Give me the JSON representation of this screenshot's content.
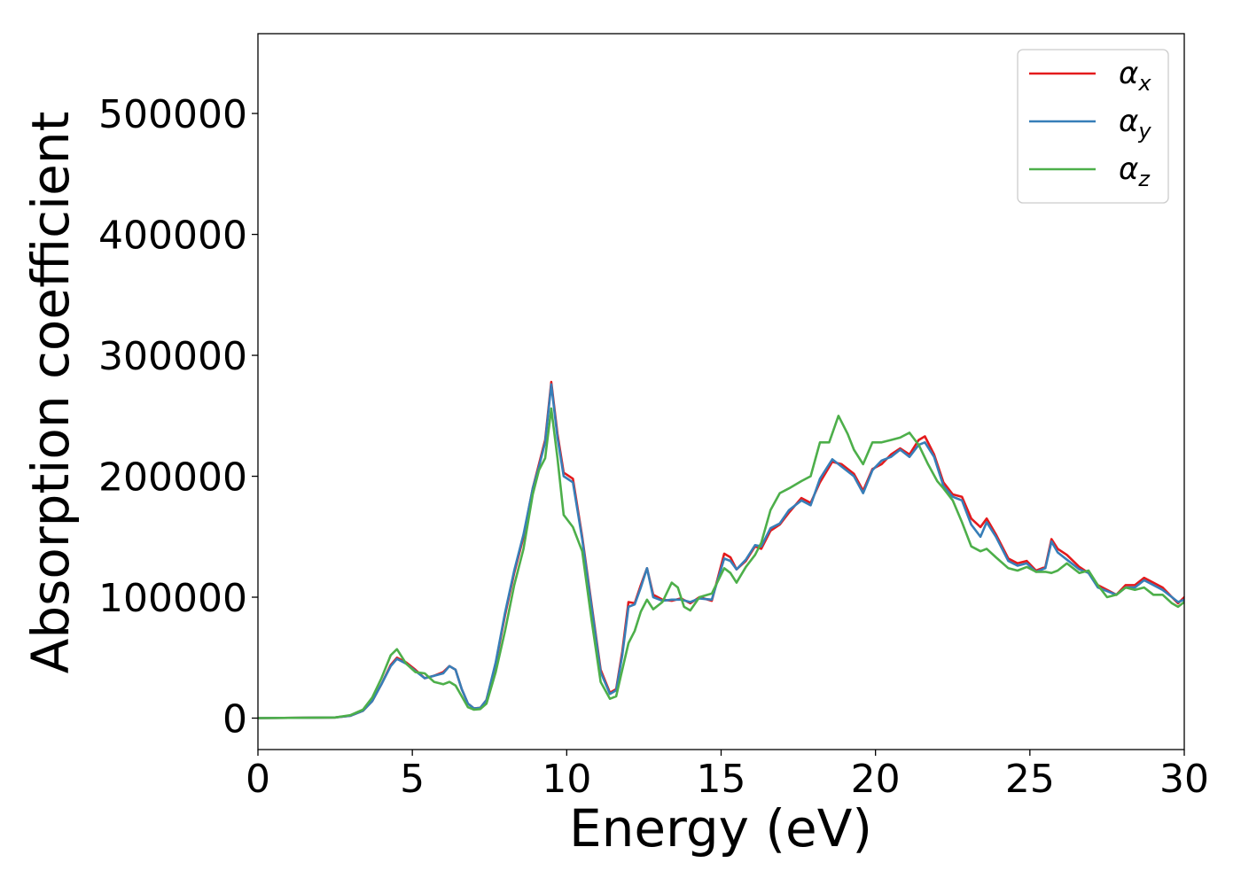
{
  "chart_data": {
    "type": "line",
    "title": "",
    "xlabel": "Energy (eV)",
    "ylabel": "Absorption coefficient",
    "xlim": [
      0,
      30
    ],
    "ylim": [
      -26000,
      566000
    ],
    "xticks": [
      0,
      5,
      10,
      15,
      20,
      25,
      30
    ],
    "xtick_labels": [
      "0",
      "5",
      "10",
      "15",
      "20",
      "25",
      "30"
    ],
    "yticks": [
      0,
      100000,
      200000,
      300000,
      400000,
      500000
    ],
    "ytick_labels": [
      "0",
      "100000",
      "200000",
      "300000",
      "400000",
      "500000"
    ],
    "grid": false,
    "legend_position": "top-right",
    "series": [
      {
        "name": "αx",
        "sym": "α",
        "sub": "x",
        "color": "#e41a1c",
        "points": [
          [
            0,
            0
          ],
          [
            2.5,
            500
          ],
          [
            3,
            2000
          ],
          [
            3.4,
            6000
          ],
          [
            3.7,
            14000
          ],
          [
            4,
            28000
          ],
          [
            4.3,
            44000
          ],
          [
            4.5,
            50000
          ],
          [
            4.8,
            46000
          ],
          [
            5.1,
            40000
          ],
          [
            5.4,
            33000
          ],
          [
            5.7,
            35000
          ],
          [
            6,
            38000
          ],
          [
            6.2,
            43000
          ],
          [
            6.4,
            40000
          ],
          [
            6.6,
            24000
          ],
          [
            6.8,
            12000
          ],
          [
            7,
            8000
          ],
          [
            7.2,
            8500
          ],
          [
            7.4,
            15000
          ],
          [
            7.7,
            45000
          ],
          [
            8,
            85000
          ],
          [
            8.3,
            120000
          ],
          [
            8.6,
            150000
          ],
          [
            8.9,
            190000
          ],
          [
            9.1,
            210000
          ],
          [
            9.3,
            230000
          ],
          [
            9.5,
            278000
          ],
          [
            9.7,
            235000
          ],
          [
            9.9,
            203000
          ],
          [
            10.2,
            198000
          ],
          [
            10.5,
            150000
          ],
          [
            10.8,
            95000
          ],
          [
            11.1,
            40000
          ],
          [
            11.4,
            21000
          ],
          [
            11.6,
            24000
          ],
          [
            11.8,
            55000
          ],
          [
            12,
            96000
          ],
          [
            12.2,
            95000
          ],
          [
            12.4,
            110000
          ],
          [
            12.6,
            124000
          ],
          [
            12.8,
            102000
          ],
          [
            13.1,
            98000
          ],
          [
            13.4,
            97000
          ],
          [
            13.7,
            99000
          ],
          [
            14,
            95000
          ],
          [
            14.3,
            100000
          ],
          [
            14.7,
            97000
          ],
          [
            15.1,
            136000
          ],
          [
            15.3,
            133000
          ],
          [
            15.5,
            123000
          ],
          [
            15.8,
            130000
          ],
          [
            16.1,
            142000
          ],
          [
            16.3,
            140000
          ],
          [
            16.6,
            155000
          ],
          [
            16.9,
            160000
          ],
          [
            17.2,
            170000
          ],
          [
            17.6,
            182000
          ],
          [
            17.9,
            178000
          ],
          [
            18.2,
            195000
          ],
          [
            18.6,
            212000
          ],
          [
            18.9,
            210000
          ],
          [
            19.3,
            202000
          ],
          [
            19.6,
            188000
          ],
          [
            19.9,
            206000
          ],
          [
            20.2,
            210000
          ],
          [
            20.5,
            218000
          ],
          [
            20.8,
            223000
          ],
          [
            21.1,
            218000
          ],
          [
            21.4,
            230000
          ],
          [
            21.6,
            233000
          ],
          [
            21.9,
            218000
          ],
          [
            22.2,
            195000
          ],
          [
            22.5,
            185000
          ],
          [
            22.8,
            183000
          ],
          [
            23.1,
            165000
          ],
          [
            23.4,
            158000
          ],
          [
            23.6,
            165000
          ],
          [
            23.9,
            152000
          ],
          [
            24.3,
            132000
          ],
          [
            24.6,
            128000
          ],
          [
            24.9,
            130000
          ],
          [
            25.2,
            122000
          ],
          [
            25.5,
            125000
          ],
          [
            25.7,
            148000
          ],
          [
            25.9,
            140000
          ],
          [
            26.2,
            135000
          ],
          [
            26.6,
            125000
          ],
          [
            26.9,
            120000
          ],
          [
            27.2,
            110000
          ],
          [
            27.5,
            106000
          ],
          [
            27.8,
            102000
          ],
          [
            28.1,
            110000
          ],
          [
            28.4,
            110000
          ],
          [
            28.7,
            116000
          ],
          [
            29,
            112000
          ],
          [
            29.3,
            108000
          ],
          [
            29.6,
            100000
          ],
          [
            29.8,
            95000
          ],
          [
            30,
            100000
          ]
        ]
      },
      {
        "name": "αy",
        "sym": "α",
        "sub": "y",
        "color": "#377eb8",
        "points": [
          [
            0,
            0
          ],
          [
            2.5,
            500
          ],
          [
            3,
            2000
          ],
          [
            3.4,
            6000
          ],
          [
            3.7,
            14000
          ],
          [
            4,
            28000
          ],
          [
            4.3,
            43000
          ],
          [
            4.5,
            49000
          ],
          [
            4.8,
            45000
          ],
          [
            5.1,
            39000
          ],
          [
            5.4,
            33000
          ],
          [
            5.7,
            35000
          ],
          [
            6,
            37000
          ],
          [
            6.2,
            43000
          ],
          [
            6.4,
            40000
          ],
          [
            6.6,
            24000
          ],
          [
            6.8,
            12000
          ],
          [
            7,
            8000
          ],
          [
            7.2,
            8500
          ],
          [
            7.4,
            15000
          ],
          [
            7.7,
            46000
          ],
          [
            8,
            87000
          ],
          [
            8.3,
            122000
          ],
          [
            8.6,
            152000
          ],
          [
            8.9,
            190000
          ],
          [
            9.1,
            208000
          ],
          [
            9.3,
            228000
          ],
          [
            9.5,
            276000
          ],
          [
            9.7,
            232000
          ],
          [
            9.9,
            200000
          ],
          [
            10.2,
            195000
          ],
          [
            10.5,
            148000
          ],
          [
            10.8,
            93000
          ],
          [
            11.1,
            38000
          ],
          [
            11.4,
            20000
          ],
          [
            11.6,
            23000
          ],
          [
            11.8,
            52000
          ],
          [
            12,
            92000
          ],
          [
            12.2,
            94000
          ],
          [
            12.4,
            108000
          ],
          [
            12.6,
            124000
          ],
          [
            12.8,
            100000
          ],
          [
            13.1,
            97000
          ],
          [
            13.4,
            98000
          ],
          [
            13.7,
            98000
          ],
          [
            14,
            96000
          ],
          [
            14.3,
            99000
          ],
          [
            14.7,
            98000
          ],
          [
            15.1,
            132000
          ],
          [
            15.3,
            130000
          ],
          [
            15.5,
            123000
          ],
          [
            15.8,
            131000
          ],
          [
            16.1,
            143000
          ],
          [
            16.3,
            142000
          ],
          [
            16.6,
            157000
          ],
          [
            16.9,
            161000
          ],
          [
            17.2,
            172000
          ],
          [
            17.6,
            180000
          ],
          [
            17.9,
            176000
          ],
          [
            18.2,
            198000
          ],
          [
            18.6,
            214000
          ],
          [
            18.9,
            208000
          ],
          [
            19.3,
            200000
          ],
          [
            19.6,
            186000
          ],
          [
            19.9,
            205000
          ],
          [
            20.2,
            213000
          ],
          [
            20.5,
            216000
          ],
          [
            20.8,
            222000
          ],
          [
            21.1,
            216000
          ],
          [
            21.4,
            226000
          ],
          [
            21.6,
            228000
          ],
          [
            21.9,
            216000
          ],
          [
            22.2,
            192000
          ],
          [
            22.5,
            183000
          ],
          [
            22.8,
            180000
          ],
          [
            23.1,
            160000
          ],
          [
            23.4,
            150000
          ],
          [
            23.6,
            162000
          ],
          [
            23.9,
            150000
          ],
          [
            24.3,
            130000
          ],
          [
            24.6,
            126000
          ],
          [
            24.9,
            128000
          ],
          [
            25.2,
            121000
          ],
          [
            25.5,
            124000
          ],
          [
            25.7,
            146000
          ],
          [
            25.9,
            137000
          ],
          [
            26.2,
            131000
          ],
          [
            26.6,
            123000
          ],
          [
            26.9,
            120000
          ],
          [
            27.2,
            108000
          ],
          [
            27.5,
            105000
          ],
          [
            27.8,
            102000
          ],
          [
            28.1,
            108000
          ],
          [
            28.4,
            108000
          ],
          [
            28.7,
            114000
          ],
          [
            29,
            110000
          ],
          [
            29.3,
            106000
          ],
          [
            29.6,
            100000
          ],
          [
            29.8,
            96000
          ],
          [
            30,
            98000
          ]
        ]
      },
      {
        "name": "αz",
        "sym": "α",
        "sub": "z",
        "color": "#4daf4a",
        "points": [
          [
            0,
            0
          ],
          [
            2.5,
            500
          ],
          [
            3,
            2500
          ],
          [
            3.4,
            7000
          ],
          [
            3.7,
            17000
          ],
          [
            4,
            33000
          ],
          [
            4.3,
            52000
          ],
          [
            4.5,
            57000
          ],
          [
            4.8,
            45000
          ],
          [
            5.1,
            38000
          ],
          [
            5.4,
            37000
          ],
          [
            5.7,
            30000
          ],
          [
            6,
            28000
          ],
          [
            6.2,
            30000
          ],
          [
            6.4,
            27000
          ],
          [
            6.6,
            18000
          ],
          [
            6.8,
            9000
          ],
          [
            7,
            7000
          ],
          [
            7.2,
            7500
          ],
          [
            7.4,
            12000
          ],
          [
            7.7,
            38000
          ],
          [
            8,
            72000
          ],
          [
            8.3,
            110000
          ],
          [
            8.6,
            140000
          ],
          [
            8.9,
            185000
          ],
          [
            9.1,
            205000
          ],
          [
            9.3,
            215000
          ],
          [
            9.5,
            256000
          ],
          [
            9.7,
            215000
          ],
          [
            9.9,
            168000
          ],
          [
            10.2,
            158000
          ],
          [
            10.5,
            138000
          ],
          [
            10.8,
            82000
          ],
          [
            11.1,
            30000
          ],
          [
            11.4,
            16000
          ],
          [
            11.6,
            18000
          ],
          [
            11.8,
            40000
          ],
          [
            12,
            62000
          ],
          [
            12.2,
            72000
          ],
          [
            12.4,
            88000
          ],
          [
            12.6,
            98000
          ],
          [
            12.8,
            90000
          ],
          [
            13.1,
            96000
          ],
          [
            13.4,
            112000
          ],
          [
            13.6,
            108000
          ],
          [
            13.8,
            92000
          ],
          [
            14,
            89000
          ],
          [
            14.3,
            100000
          ],
          [
            14.7,
            103000
          ],
          [
            15.1,
            124000
          ],
          [
            15.3,
            120000
          ],
          [
            15.5,
            112000
          ],
          [
            15.8,
            125000
          ],
          [
            16.1,
            135000
          ],
          [
            16.3,
            145000
          ],
          [
            16.6,
            172000
          ],
          [
            16.9,
            186000
          ],
          [
            17.2,
            190000
          ],
          [
            17.6,
            196000
          ],
          [
            17.9,
            200000
          ],
          [
            18.2,
            228000
          ],
          [
            18.5,
            228000
          ],
          [
            18.8,
            250000
          ],
          [
            19.1,
            235000
          ],
          [
            19.3,
            222000
          ],
          [
            19.6,
            210000
          ],
          [
            19.9,
            228000
          ],
          [
            20.2,
            228000
          ],
          [
            20.5,
            230000
          ],
          [
            20.8,
            232000
          ],
          [
            21.1,
            236000
          ],
          [
            21.4,
            226000
          ],
          [
            21.7,
            210000
          ],
          [
            22,
            196000
          ],
          [
            22.2,
            190000
          ],
          [
            22.5,
            180000
          ],
          [
            22.8,
            162000
          ],
          [
            23.1,
            142000
          ],
          [
            23.4,
            138000
          ],
          [
            23.6,
            140000
          ],
          [
            23.9,
            133000
          ],
          [
            24.3,
            124000
          ],
          [
            24.6,
            122000
          ],
          [
            24.9,
            125000
          ],
          [
            25.2,
            121000
          ],
          [
            25.5,
            121000
          ],
          [
            25.7,
            120000
          ],
          [
            25.9,
            122000
          ],
          [
            26.2,
            128000
          ],
          [
            26.6,
            120000
          ],
          [
            26.9,
            122000
          ],
          [
            27.2,
            110000
          ],
          [
            27.5,
            100000
          ],
          [
            27.8,
            102000
          ],
          [
            28.1,
            108000
          ],
          [
            28.4,
            106000
          ],
          [
            28.7,
            108000
          ],
          [
            29,
            102000
          ],
          [
            29.3,
            102000
          ],
          [
            29.6,
            95000
          ],
          [
            29.8,
            92000
          ],
          [
            30,
            96000
          ]
        ]
      }
    ]
  }
}
